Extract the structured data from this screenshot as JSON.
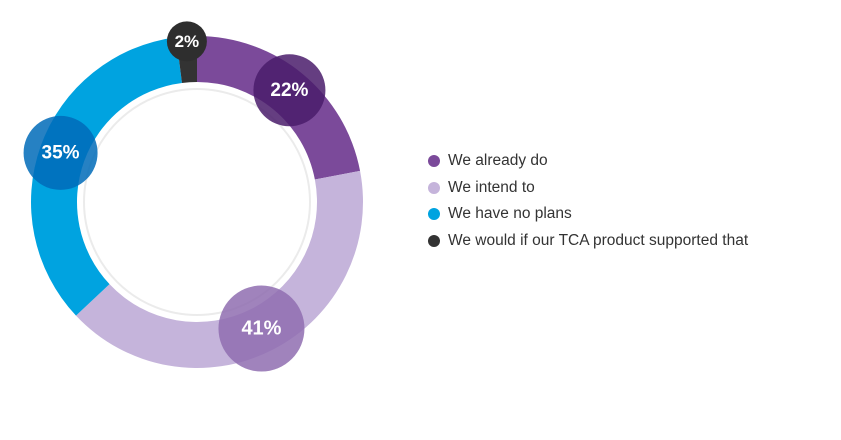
{
  "chart_data": {
    "type": "pie",
    "style": "donut",
    "title": "",
    "categories": [
      "We already do",
      "We intend to",
      "We have no plans",
      "We would if our TCA product supported that"
    ],
    "values": [
      22,
      41,
      35,
      2
    ],
    "labels": [
      "22%",
      "41%",
      "35%",
      "2%"
    ],
    "colors": [
      "#7b4a9a",
      "#c5b4db",
      "#00a3e0",
      "#333333"
    ],
    "bubble_colors": [
      "#4a1c6b",
      "#8f6db0",
      "#006bb8",
      "#2e2e2e"
    ],
    "legend_position": "right"
  }
}
